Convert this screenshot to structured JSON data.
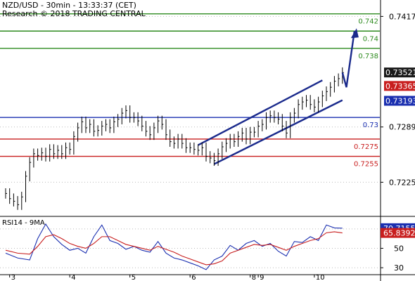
{
  "header": {
    "title": "NZD/USD - 30min - 13:33:37 (CET)",
    "copyright": "Research © 2018 TRADING CENTRAL"
  },
  "chart_data": [
    {
      "type": "line",
      "title": "NZD/USD - 30min - 13:33:37 (CET)",
      "x_categories": [
        "3",
        "4",
        "5",
        "6",
        "8",
        "9",
        "10"
      ],
      "ylim": [
        0.7192,
        0.7436
      ],
      "y_ticks": [
        0.7417,
        0.7289,
        0.7225
      ],
      "last_price": 0.73521,
      "price_labels": [
        {
          "label": "0.73521",
          "value": 0.73521,
          "style": "dark"
        },
        {
          "label": "0.73365",
          "value": 0.73365,
          "style": "red"
        },
        {
          "label": "0.73193",
          "value": 0.73193,
          "style": "blue"
        }
      ],
      "levels": [
        {
          "label": "0.742",
          "value": 0.742,
          "kind": "resistance",
          "color": "#2e8b1f"
        },
        {
          "label": "0.74",
          "value": 0.74,
          "kind": "resistance",
          "color": "#2e8b1f"
        },
        {
          "label": "0.738",
          "value": 0.738,
          "kind": "resistance",
          "color": "#2e8b1f"
        },
        {
          "label": "0.73",
          "value": 0.73,
          "kind": "pivot",
          "color": "#1a2fb0"
        },
        {
          "label": "0.7275",
          "value": 0.7275,
          "kind": "support",
          "color": "#c81e1e"
        },
        {
          "label": "0.7255",
          "value": 0.7255,
          "kind": "support",
          "color": "#c81e1e"
        }
      ],
      "series": [
        {
          "name": "price",
          "color": "#000000",
          "x": [
            0,
            1,
            2,
            3,
            4,
            5,
            6,
            7,
            8,
            9,
            10,
            11,
            12,
            13,
            14,
            15,
            16,
            17,
            18,
            19,
            20,
            21,
            22,
            23,
            24,
            25,
            26,
            27,
            28,
            29,
            30,
            31,
            32,
            33,
            34,
            35,
            36,
            37,
            38,
            39,
            40,
            41,
            42,
            43,
            44,
            45,
            46,
            47,
            48,
            49,
            50,
            51,
            52,
            53,
            54,
            55,
            56,
            57,
            58,
            59,
            60,
            61,
            62,
            63,
            64,
            65,
            66,
            67,
            68,
            69,
            70,
            71,
            72,
            73,
            74,
            75,
            76,
            77,
            78,
            79,
            80,
            81,
            82,
            83,
            84
          ],
          "values": [
            0.7212,
            0.7206,
            0.7203,
            0.7199,
            0.7208,
            0.7232,
            0.7248,
            0.7258,
            0.7256,
            0.7259,
            0.7255,
            0.7263,
            0.7258,
            0.7262,
            0.7258,
            0.7265,
            0.7263,
            0.7278,
            0.7288,
            0.7295,
            0.7288,
            0.7292,
            0.7284,
            0.7285,
            0.729,
            0.7292,
            0.7288,
            0.7295,
            0.7298,
            0.7305,
            0.7308,
            0.73,
            0.73,
            0.7296,
            0.729,
            0.7284,
            0.728,
            0.7288,
            0.7296,
            0.7292,
            0.728,
            0.7272,
            0.727,
            0.7275,
            0.727,
            0.7265,
            0.7265,
            0.7263,
            0.7262,
            0.7265,
            0.7255,
            0.7253,
            0.725,
            0.7258,
            0.7266,
            0.727,
            0.7275,
            0.7272,
            0.7278,
            0.7282,
            0.7275,
            0.7283,
            0.7283,
            0.729,
            0.7292,
            0.73,
            0.7302,
            0.73,
            0.7298,
            0.729,
            0.7282,
            0.73,
            0.7305,
            0.7315,
            0.7318,
            0.732,
            0.7315,
            0.7312,
            0.7318,
            0.7325,
            0.733,
            0.7335,
            0.7342,
            0.7345,
            0.7352
          ]
        },
        {
          "name": "forecast",
          "color": "#1a2a8c",
          "x": [
            84,
            85,
            87
          ],
          "values": [
            0.7352,
            0.7335,
            0.74
          ]
        }
      ],
      "channel": {
        "upper": {
          "x": [
            48,
            79
          ],
          "values": [
            0.7268,
            0.7343
          ]
        },
        "lower": {
          "x": [
            52,
            84
          ],
          "values": [
            0.7246,
            0.732
          ]
        }
      }
    },
    {
      "type": "line",
      "title": "RSI14 - 9MA",
      "x_categories": [
        "3",
        "4",
        "5",
        "6",
        "8",
        "9",
        "10"
      ],
      "ylim": [
        25,
        80
      ],
      "y_ticks": [
        70,
        50,
        30
      ],
      "value_labels": [
        {
          "label": "70.7155",
          "value": 70.7155,
          "style": "blue"
        },
        {
          "label": "65.8392",
          "value": 65.8392,
          "style": "red"
        }
      ],
      "series": [
        {
          "name": "RSI14",
          "color": "#1a2fb0",
          "x": [
            0,
            3,
            6,
            8,
            10,
            12,
            14,
            16,
            18,
            20,
            22,
            24,
            26,
            28,
            30,
            32,
            34,
            36,
            38,
            40,
            42,
            44,
            46,
            48,
            50,
            52,
            54,
            56,
            58,
            60,
            62,
            64,
            66,
            68,
            70,
            72,
            74,
            76,
            78,
            80,
            82,
            84
          ],
          "values": [
            45,
            40,
            38,
            60,
            75,
            62,
            54,
            48,
            50,
            45,
            62,
            74,
            58,
            55,
            49,
            52,
            48,
            46,
            57,
            45,
            40,
            38,
            35,
            32,
            28,
            38,
            42,
            53,
            48,
            55,
            58,
            52,
            55,
            47,
            42,
            57,
            56,
            62,
            58,
            74,
            71,
            70.7155
          ]
        },
        {
          "name": "9MA",
          "color": "#c81e1e",
          "x": [
            0,
            3,
            6,
            8,
            10,
            12,
            14,
            16,
            18,
            20,
            22,
            24,
            26,
            28,
            30,
            32,
            34,
            36,
            38,
            40,
            42,
            44,
            46,
            48,
            50,
            52,
            54,
            56,
            58,
            60,
            62,
            64,
            66,
            68,
            70,
            72,
            74,
            76,
            78,
            80,
            82,
            84
          ],
          "values": [
            48,
            45,
            44,
            52,
            62,
            64,
            60,
            55,
            52,
            50,
            55,
            62,
            62,
            58,
            54,
            52,
            50,
            48,
            52,
            49,
            46,
            42,
            39,
            36,
            33,
            34,
            37,
            45,
            48,
            51,
            54,
            53,
            54,
            51,
            48,
            52,
            55,
            58,
            60,
            66,
            67,
            65.8392
          ]
        }
      ]
    }
  ]
}
